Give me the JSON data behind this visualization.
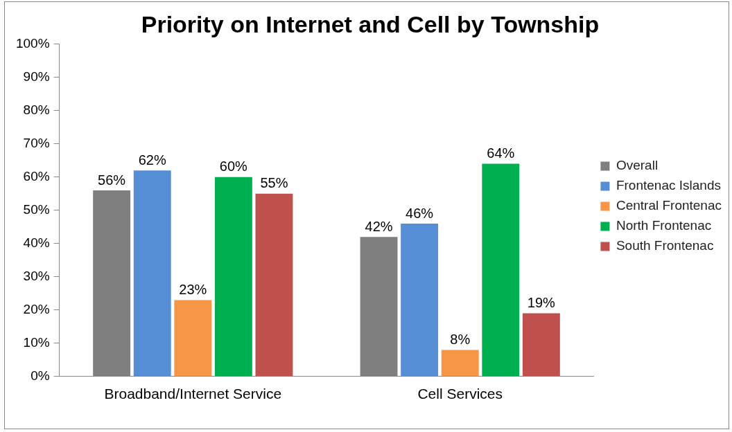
{
  "chart_data": {
    "type": "bar",
    "title": "Priority on Internet and Cell by Township",
    "categories": [
      "Broadband/Internet Service",
      "Cell Services"
    ],
    "series": [
      {
        "name": "Overall",
        "color": "#7f7f7f",
        "values": [
          56,
          42
        ],
        "value_labels": [
          "56%",
          "42%"
        ]
      },
      {
        "name": "Frontenac Islands",
        "color": "#558ed5",
        "values": [
          62,
          46
        ],
        "value_labels": [
          "62%",
          "46%"
        ]
      },
      {
        "name": "Central Frontenac",
        "color": "#f79646",
        "values": [
          23,
          8
        ],
        "value_labels": [
          "23%",
          "8%"
        ]
      },
      {
        "name": "North Frontenac",
        "color": "#00b050",
        "values": [
          60,
          64
        ],
        "value_labels": [
          "60%",
          "64%"
        ]
      },
      {
        "name": "South Frontenac",
        "color": "#c0504d",
        "values": [
          55,
          19
        ],
        "value_labels": [
          "55%",
          "19%"
        ]
      }
    ],
    "ylim": [
      0,
      100
    ],
    "yticks": [
      {
        "value": 0,
        "label": "0%"
      },
      {
        "value": 10,
        "label": "10%"
      },
      {
        "value": 20,
        "label": "20%"
      },
      {
        "value": 30,
        "label": "30%"
      },
      {
        "value": 40,
        "label": "40%"
      },
      {
        "value": 50,
        "label": "50%"
      },
      {
        "value": 60,
        "label": "60%"
      },
      {
        "value": 70,
        "label": "70%"
      },
      {
        "value": 80,
        "label": "80%"
      },
      {
        "value": 90,
        "label": "90%"
      },
      {
        "value": 100,
        "label": "100%"
      }
    ],
    "grid": false,
    "legend": "right"
  }
}
